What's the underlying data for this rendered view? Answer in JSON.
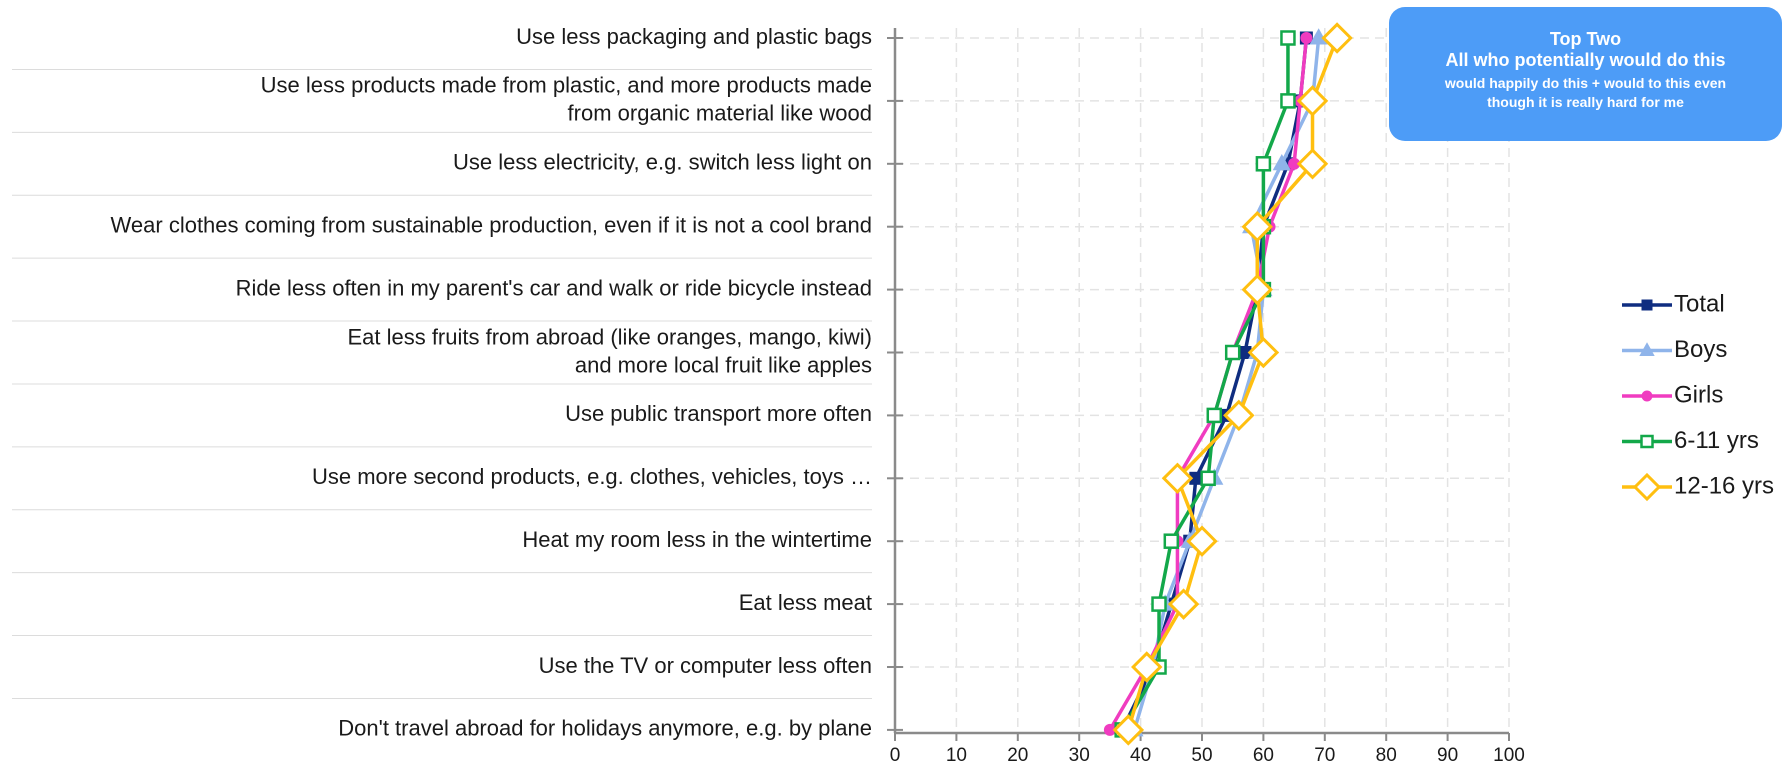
{
  "chart_data": {
    "type": "line",
    "orientation": "horizontal",
    "categories": [
      [
        "Use less packaging and plastic bags"
      ],
      [
        "Use less products made from plastic, and more products made",
        "from organic material like wood"
      ],
      [
        "Use less electricity, e.g. switch less light on"
      ],
      [
        "Wear clothes coming from sustainable production, even if it is not a cool brand"
      ],
      [
        "Ride less often in my parent's car and walk or ride bicycle instead"
      ],
      [
        "Eat less fruits from abroad (like oranges, mango, kiwi)",
        "and more local fruit like apples"
      ],
      [
        "Use public transport more often"
      ],
      [
        "Use more second products, e.g. clothes, vehicles, toys …"
      ],
      [
        "Heat my room less in the wintertime"
      ],
      [
        "Eat less meat"
      ],
      [
        "Use the TV or computer less often"
      ],
      [
        "Don't travel abroad for holidays anymore, e.g. by plane"
      ]
    ],
    "x_ticks": [
      "0",
      "10",
      "20",
      "30",
      "40",
      "50",
      "60",
      "70",
      "80",
      "90",
      "100"
    ],
    "xlim": [
      0,
      100
    ],
    "grid": true,
    "legend_position": "right",
    "series": [
      {
        "name": "Total",
        "color": "#0f2d80",
        "marker": "square",
        "values": [
          67,
          66,
          64,
          60,
          59,
          57,
          54,
          49,
          48,
          45,
          42,
          37
        ]
      },
      {
        "name": "Boys",
        "color": "#8fb4ea",
        "marker": "triangle",
        "values": [
          69,
          68,
          63,
          58,
          60,
          59,
          56,
          52,
          48,
          44,
          42,
          39
        ]
      },
      {
        "name": "Girls",
        "color": "#f03cc0",
        "marker": "circle",
        "values": [
          67,
          66,
          65,
          61,
          59,
          55,
          52,
          46,
          46,
          46,
          41,
          35
        ]
      },
      {
        "name": "6-11 yrs",
        "color": "#13a84a",
        "marker": "open-square",
        "values": [
          64,
          64,
          60,
          60,
          60,
          55,
          52,
          51,
          45,
          43,
          43,
          37
        ]
      },
      {
        "name": "12-16 yrs",
        "color": "#ffbf10",
        "marker": "open-diamond",
        "values": [
          72,
          68,
          68,
          59,
          59,
          60,
          56,
          46,
          50,
          47,
          41,
          38
        ]
      }
    ]
  },
  "note": {
    "title": "Top Two",
    "subtitle": "All who potentially would do this",
    "detail_line1": "would happily do this + would to this even",
    "detail_line2": "though it is really hard for me"
  }
}
